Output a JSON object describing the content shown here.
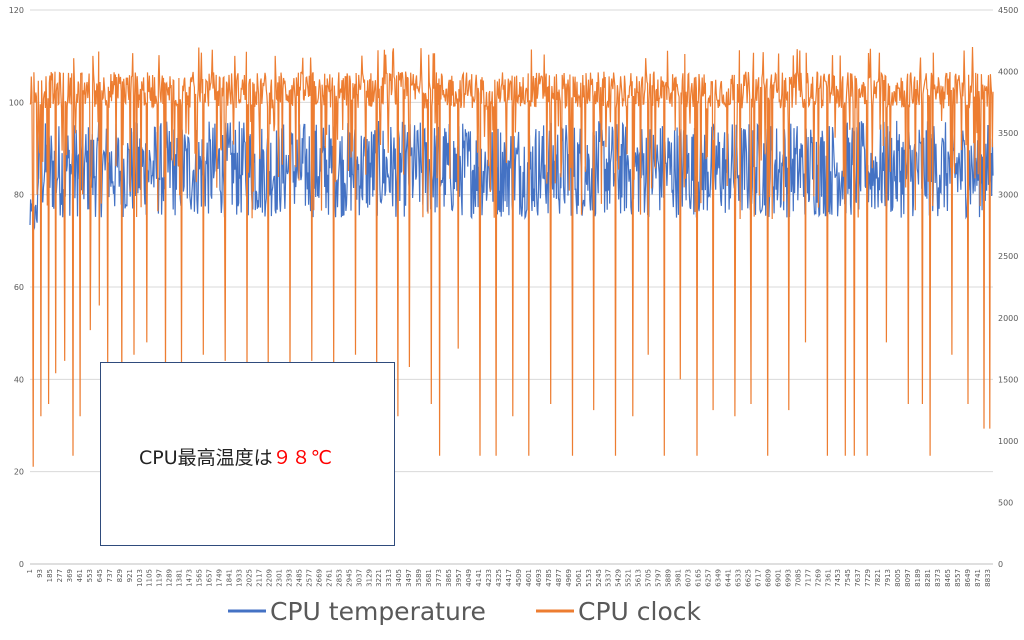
{
  "chart_data": {
    "type": "line",
    "title": "",
    "xlabel": "",
    "ylabel": "",
    "y_left": {
      "min": 0,
      "max": 120,
      "step": 20,
      "ticks": [
        "0",
        "20",
        "40",
        "60",
        "80",
        "100",
        "120"
      ]
    },
    "y_right": {
      "min": 0,
      "max": 4500,
      "step": 500,
      "ticks": [
        "0",
        "500",
        "1000",
        "1500",
        "2000",
        "2500",
        "3000",
        "3500",
        "4000",
        "4500"
      ]
    },
    "x_range": [
      1,
      8880
    ],
    "x_tick_labels": [
      "1",
      "93",
      "185",
      "277",
      "369",
      "461",
      "553",
      "645",
      "737",
      "829",
      "921",
      "1013",
      "1105",
      "1197",
      "1289",
      "1381",
      "1473",
      "1565",
      "1657",
      "1749",
      "1841",
      "1933",
      "2025",
      "2117",
      "2209",
      "2301",
      "2393",
      "2485",
      "2577",
      "2669",
      "2761",
      "2853",
      "2945",
      "3037",
      "3129",
      "3221",
      "3313",
      "3405",
      "3497",
      "3589",
      "3681",
      "3773",
      "3865",
      "3957",
      "4049",
      "4141",
      "4233",
      "4325",
      "4417",
      "4509",
      "4601",
      "4693",
      "4785",
      "4877",
      "4969",
      "5061",
      "5153",
      "5245",
      "5337",
      "5429",
      "5521",
      "5613",
      "5705",
      "5797",
      "5889",
      "5981",
      "6073",
      "6165",
      "6257",
      "6349",
      "6441",
      "6533",
      "6625",
      "6717",
      "6809",
      "6901",
      "6993",
      "7085",
      "7177",
      "7269",
      "7361",
      "7453",
      "7545",
      "7637",
      "7729",
      "7821",
      "7913",
      "8005",
      "8097",
      "8189",
      "8281",
      "8373",
      "8465",
      "8557",
      "8649",
      "8741",
      "8833"
    ],
    "grid": true,
    "legend_position": "bottom",
    "series": [
      {
        "name": "CPU temperature",
        "axis": "left",
        "color": "#4472c4",
        "typical_range": [
          75,
          96
        ],
        "min_value": 71,
        "max_value": 98
      },
      {
        "name": "CPU clock",
        "axis": "right",
        "color": "#ed7d31",
        "typical_range": [
          3700,
          4000
        ],
        "min_value": 790,
        "max_value": 4200,
        "dips": [
          {
            "x": 30,
            "value": 790
          },
          {
            "x": 100,
            "value": 1200
          },
          {
            "x": 170,
            "value": 1300
          },
          {
            "x": 240,
            "value": 1550
          },
          {
            "x": 320,
            "value": 1650
          },
          {
            "x": 400,
            "value": 880
          },
          {
            "x": 460,
            "value": 1200
          },
          {
            "x": 560,
            "value": 1900
          },
          {
            "x": 640,
            "value": 2100
          },
          {
            "x": 720,
            "value": 1600
          },
          {
            "x": 850,
            "value": 1400
          },
          {
            "x": 960,
            "value": 1700
          },
          {
            "x": 1080,
            "value": 1800
          },
          {
            "x": 1250,
            "value": 1500
          },
          {
            "x": 1400,
            "value": 1600
          },
          {
            "x": 1600,
            "value": 1700
          },
          {
            "x": 1800,
            "value": 1650
          },
          {
            "x": 2000,
            "value": 1550
          },
          {
            "x": 2200,
            "value": 1600
          },
          {
            "x": 2400,
            "value": 1500
          },
          {
            "x": 2600,
            "value": 1650
          },
          {
            "x": 2800,
            "value": 1600
          },
          {
            "x": 3000,
            "value": 1700
          },
          {
            "x": 3200,
            "value": 1500
          },
          {
            "x": 3390,
            "value": 1200
          },
          {
            "x": 3500,
            "value": 1600
          },
          {
            "x": 3700,
            "value": 1300
          },
          {
            "x": 3780,
            "value": 880
          },
          {
            "x": 3950,
            "value": 1750
          },
          {
            "x": 4150,
            "value": 880
          },
          {
            "x": 4300,
            "value": 880
          },
          {
            "x": 4450,
            "value": 1200
          },
          {
            "x": 4600,
            "value": 880
          },
          {
            "x": 4800,
            "value": 1300
          },
          {
            "x": 5000,
            "value": 880
          },
          {
            "x": 5200,
            "value": 1250
          },
          {
            "x": 5400,
            "value": 880
          },
          {
            "x": 5560,
            "value": 1200
          },
          {
            "x": 5700,
            "value": 1700
          },
          {
            "x": 5850,
            "value": 880
          },
          {
            "x": 6000,
            "value": 1500
          },
          {
            "x": 6150,
            "value": 880
          },
          {
            "x": 6300,
            "value": 1250
          },
          {
            "x": 6500,
            "value": 1200
          },
          {
            "x": 6650,
            "value": 1300
          },
          {
            "x": 6800,
            "value": 880
          },
          {
            "x": 7000,
            "value": 1250
          },
          {
            "x": 7150,
            "value": 1800
          },
          {
            "x": 7350,
            "value": 880
          },
          {
            "x": 7520,
            "value": 880
          },
          {
            "x": 7600,
            "value": 880
          },
          {
            "x": 7720,
            "value": 880
          },
          {
            "x": 7900,
            "value": 1800
          },
          {
            "x": 8100,
            "value": 1300
          },
          {
            "x": 8230,
            "value": 1300
          },
          {
            "x": 8300,
            "value": 880
          },
          {
            "x": 8500,
            "value": 1700
          },
          {
            "x": 8650,
            "value": 1300
          },
          {
            "x": 8800,
            "value": 1100
          },
          {
            "x": 8850,
            "value": 1100
          }
        ]
      }
    ],
    "annotation": {
      "prefix": "CPU最高温度は",
      "value": "９８℃"
    }
  }
}
